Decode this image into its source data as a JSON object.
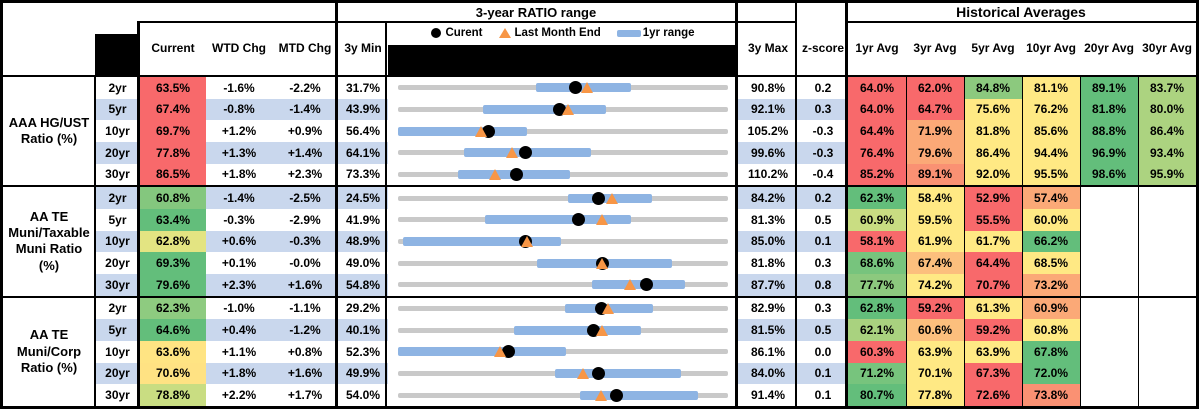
{
  "title_row": {
    "chart_title": "3-year RATIO range",
    "hist_title": "Historical Averages"
  },
  "columns": {
    "current": "Current",
    "wtd": "WTD Chg",
    "mtd": "MTD Chg",
    "min": "3y Min",
    "max": "3y Max",
    "z": "z-score",
    "avgs": [
      "1yr Avg",
      "3yr Avg",
      "5yr Avg",
      "10yr Avg",
      "20yr Avg",
      "30yr Avg"
    ]
  },
  "legend": {
    "current": "Curent",
    "last_month": "Last Month End",
    "range": "1yr range"
  },
  "colors": {
    "stripe": "#C9D7ED",
    "track_gray": "#C9C9C9",
    "range_bar_blue": "#8EB4E3",
    "triangle_orange": "#F79646",
    "dot_black": "#000000",
    "scale_red": "#F8696B",
    "scale_yellow": "#FFE984",
    "scale_green": "#63BE7B"
  },
  "chart_data": {
    "type": "table",
    "title": "3-year RATIO range",
    "groups": [
      {
        "label": "AAA HG/UST\nRatio (%)",
        "rows": [
          {
            "tenor": "2yr",
            "current": "63.5%",
            "current_bg": "#F8696B",
            "wtd": "-1.6%",
            "mtd": "-2.2%",
            "min": "31.7%",
            "max": "90.8%",
            "z": "0.2",
            "range": {
              "lo": 0.417,
              "hi": 0.707,
              "dot": 0.538,
              "tri": 0.575
            },
            "avgs": [
              {
                "v": "64.0%",
                "bg": "#F8696B"
              },
              {
                "v": "62.0%",
                "bg": "#F8696B"
              },
              {
                "v": "84.8%",
                "bg": "#8CC97E"
              },
              {
                "v": "81.1%",
                "bg": "#FFE984"
              },
              {
                "v": "89.1%",
                "bg": "#63BE7B"
              },
              {
                "v": "83.7%",
                "bg": "#ACD380"
              }
            ]
          },
          {
            "tenor": "5yr",
            "current": "67.4%",
            "current_bg": "#F8696B",
            "wtd": "-0.8%",
            "mtd": "-1.4%",
            "min": "43.9%",
            "max": "92.1%",
            "z": "0.3",
            "range": {
              "lo": 0.258,
              "hi": 0.631,
              "dot": 0.488,
              "tri": 0.517
            },
            "avgs": [
              {
                "v": "64.0%",
                "bg": "#F8696B"
              },
              {
                "v": "64.7%",
                "bg": "#F8696B"
              },
              {
                "v": "75.6%",
                "bg": "#FFE984"
              },
              {
                "v": "76.2%",
                "bg": "#FFE984"
              },
              {
                "v": "81.8%",
                "bg": "#63BE7B"
              },
              {
                "v": "80.0%",
                "bg": "#ACD380"
              }
            ]
          },
          {
            "tenor": "10yr",
            "current": "69.7%",
            "current_bg": "#F8696B",
            "wtd": "+1.2%",
            "mtd": "+0.9%",
            "min": "56.4%",
            "max": "105.2%",
            "z": "-0.3",
            "range": {
              "lo": 0.0,
              "hi": 0.392,
              "dot": 0.273,
              "tri": 0.254
            },
            "avgs": [
              {
                "v": "64.4%",
                "bg": "#F8696B"
              },
              {
                "v": "71.9%",
                "bg": "#FBA977"
              },
              {
                "v": "81.8%",
                "bg": "#FFE984"
              },
              {
                "v": "85.6%",
                "bg": "#FFE984"
              },
              {
                "v": "88.8%",
                "bg": "#63BE7B"
              },
              {
                "v": "86.4%",
                "bg": "#ACD380"
              }
            ]
          },
          {
            "tenor": "20yr",
            "current": "77.8%",
            "current_bg": "#F8696B",
            "wtd": "+1.3%",
            "mtd": "+1.4%",
            "min": "64.1%",
            "max": "99.6%",
            "z": "-0.3",
            "range": {
              "lo": 0.2,
              "hi": 0.584,
              "dot": 0.386,
              "tri": 0.346
            },
            "avgs": [
              {
                "v": "76.4%",
                "bg": "#F8696B"
              },
              {
                "v": "79.6%",
                "bg": "#FBA977"
              },
              {
                "v": "86.4%",
                "bg": "#FFE984"
              },
              {
                "v": "94.4%",
                "bg": "#FFE984"
              },
              {
                "v": "96.9%",
                "bg": "#63BE7B"
              },
              {
                "v": "93.4%",
                "bg": "#ACD380"
              }
            ]
          },
          {
            "tenor": "30yr",
            "current": "86.5%",
            "current_bg": "#F8696B",
            "wtd": "+1.8%",
            "mtd": "+2.3%",
            "min": "73.3%",
            "max": "110.2%",
            "z": "-0.4",
            "range": {
              "lo": 0.182,
              "hi": 0.52,
              "dot": 0.358,
              "tri": 0.295
            },
            "avgs": [
              {
                "v": "85.2%",
                "bg": "#F8696B"
              },
              {
                "v": "89.1%",
                "bg": "#FA9173"
              },
              {
                "v": "92.0%",
                "bg": "#FFE984"
              },
              {
                "v": "95.5%",
                "bg": "#FFE984"
              },
              {
                "v": "98.6%",
                "bg": "#63BE7B"
              },
              {
                "v": "95.9%",
                "bg": "#ACD380"
              }
            ]
          }
        ]
      },
      {
        "label": "AA TE\nMuni/Taxable\nMuni Ratio\n(%)",
        "rows": [
          {
            "tenor": "2yr",
            "current": "60.8%",
            "current_bg": "#84C77E",
            "wtd": "-1.4%",
            "mtd": "-2.5%",
            "min": "24.5%",
            "max": "84.2%",
            "z": "0.2",
            "range": {
              "lo": 0.515,
              "hi": 0.771,
              "dot": 0.608,
              "tri": 0.65
            },
            "avgs": [
              {
                "v": "62.3%",
                "bg": "#63BE7B"
              },
              {
                "v": "58.4%",
                "bg": "#FFE984"
              },
              {
                "v": "52.9%",
                "bg": "#F8696B"
              },
              {
                "v": "57.4%",
                "bg": "#FBA977"
              },
              {
                "v": "",
                "bg": ""
              },
              {
                "v": "",
                "bg": ""
              }
            ]
          },
          {
            "tenor": "5yr",
            "current": "63.4%",
            "current_bg": "#63BE7B",
            "wtd": "-0.3%",
            "mtd": "-2.9%",
            "min": "41.9%",
            "max": "81.3%",
            "z": "0.5",
            "range": {
              "lo": 0.263,
              "hi": 0.705,
              "dot": 0.546,
              "tri": 0.619
            },
            "avgs": [
              {
                "v": "60.9%",
                "bg": "#C9DD82"
              },
              {
                "v": "59.5%",
                "bg": "#FFE984"
              },
              {
                "v": "55.5%",
                "bg": "#F8696B"
              },
              {
                "v": "60.0%",
                "bg": "#FFE984"
              },
              {
                "v": "",
                "bg": ""
              },
              {
                "v": "",
                "bg": ""
              }
            ]
          },
          {
            "tenor": "10yr",
            "current": "62.8%",
            "current_bg": "#E3E482",
            "wtd": "+0.6%",
            "mtd": "-0.3%",
            "min": "48.9%",
            "max": "85.0%",
            "z": "0.1",
            "range": {
              "lo": 0.015,
              "hi": 0.495,
              "dot": 0.385,
              "tri": 0.393
            },
            "avgs": [
              {
                "v": "58.1%",
                "bg": "#F8696B"
              },
              {
                "v": "61.9%",
                "bg": "#FFE984"
              },
              {
                "v": "61.7%",
                "bg": "#FFE984"
              },
              {
                "v": "66.2%",
                "bg": "#63BE7B"
              },
              {
                "v": "",
                "bg": ""
              },
              {
                "v": "",
                "bg": ""
              }
            ]
          },
          {
            "tenor": "20yr",
            "current": "69.3%",
            "current_bg": "#63BE7B",
            "wtd": "+0.1%",
            "mtd": "-0.0%",
            "min": "49.0%",
            "max": "81.8%",
            "z": "0.3",
            "range": {
              "lo": 0.422,
              "hi": 0.83,
              "dot": 0.619,
              "tri": 0.621
            },
            "avgs": [
              {
                "v": "68.6%",
                "bg": "#77C47D"
              },
              {
                "v": "67.4%",
                "bg": "#FCBF7D"
              },
              {
                "v": "64.4%",
                "bg": "#F8696B"
              },
              {
                "v": "68.5%",
                "bg": "#FFE984"
              },
              {
                "v": "",
                "bg": ""
              },
              {
                "v": "",
                "bg": ""
              }
            ]
          },
          {
            "tenor": "30yr",
            "current": "79.6%",
            "current_bg": "#63BE7B",
            "wtd": "+2.3%",
            "mtd": "+1.6%",
            "min": "54.8%",
            "max": "87.7%",
            "z": "0.8",
            "range": {
              "lo": 0.588,
              "hi": 0.869,
              "dot": 0.754,
              "tri": 0.705
            },
            "avgs": [
              {
                "v": "77.7%",
                "bg": "#8CC97E"
              },
              {
                "v": "74.2%",
                "bg": "#FFE984"
              },
              {
                "v": "70.7%",
                "bg": "#F8696B"
              },
              {
                "v": "73.2%",
                "bg": "#FBA977"
              },
              {
                "v": "",
                "bg": ""
              },
              {
                "v": "",
                "bg": ""
              }
            ]
          }
        ]
      },
      {
        "label": "AA TE\nMuni/Corp\nRatio (%)",
        "rows": [
          {
            "tenor": "2yr",
            "current": "62.3%",
            "current_bg": "#8ECB80",
            "wtd": "-1.0%",
            "mtd": "-1.1%",
            "min": "29.2%",
            "max": "82.9%",
            "z": "0.3",
            "range": {
              "lo": 0.505,
              "hi": 0.773,
              "dot": 0.616,
              "tri": 0.637
            },
            "avgs": [
              {
                "v": "62.8%",
                "bg": "#63BE7B"
              },
              {
                "v": "59.2%",
                "bg": "#F8696B"
              },
              {
                "v": "61.3%",
                "bg": "#FFE984"
              },
              {
                "v": "60.9%",
                "bg": "#FBA977"
              },
              {
                "v": "",
                "bg": ""
              },
              {
                "v": "",
                "bg": ""
              }
            ]
          },
          {
            "tenor": "5yr",
            "current": "64.6%",
            "current_bg": "#63BE7B",
            "wtd": "+0.4%",
            "mtd": "-1.2%",
            "min": "40.1%",
            "max": "81.5%",
            "z": "0.5",
            "range": {
              "lo": 0.352,
              "hi": 0.735,
              "dot": 0.592,
              "tri": 0.621
            },
            "avgs": [
              {
                "v": "62.1%",
                "bg": "#A9D27F"
              },
              {
                "v": "60.6%",
                "bg": "#FCBF7D"
              },
              {
                "v": "59.2%",
                "bg": "#F8696B"
              },
              {
                "v": "60.8%",
                "bg": "#FFE984"
              },
              {
                "v": "",
                "bg": ""
              },
              {
                "v": "",
                "bg": ""
              }
            ]
          },
          {
            "tenor": "10yr",
            "current": "63.6%",
            "current_bg": "#FFE483",
            "wtd": "+1.1%",
            "mtd": "+0.8%",
            "min": "52.3%",
            "max": "86.1%",
            "z": "0.0",
            "range": {
              "lo": 0.0,
              "hi": 0.51,
              "dot": 0.334,
              "tri": 0.311
            },
            "avgs": [
              {
                "v": "60.3%",
                "bg": "#F8696B"
              },
              {
                "v": "63.9%",
                "bg": "#FFE984"
              },
              {
                "v": "63.9%",
                "bg": "#FFE984"
              },
              {
                "v": "67.8%",
                "bg": "#63BE7B"
              },
              {
                "v": "",
                "bg": ""
              },
              {
                "v": "",
                "bg": ""
              }
            ]
          },
          {
            "tenor": "20yr",
            "current": "70.6%",
            "current_bg": "#FFE283",
            "wtd": "+1.8%",
            "mtd": "+1.6%",
            "min": "49.9%",
            "max": "84.0%",
            "z": "0.1",
            "range": {
              "lo": 0.475,
              "hi": 0.859,
              "dot": 0.607,
              "tri": 0.561
            },
            "avgs": [
              {
                "v": "71.2%",
                "bg": "#77C47D"
              },
              {
                "v": "70.1%",
                "bg": "#FFE984"
              },
              {
                "v": "67.3%",
                "bg": "#F8696B"
              },
              {
                "v": "72.0%",
                "bg": "#63BE7B"
              },
              {
                "v": "",
                "bg": ""
              },
              {
                "v": "",
                "bg": ""
              }
            ]
          },
          {
            "tenor": "30yr",
            "current": "78.8%",
            "current_bg": "#C9DD82",
            "wtd": "+2.2%",
            "mtd": "+1.7%",
            "min": "54.0%",
            "max": "91.4%",
            "z": "0.1",
            "range": {
              "lo": 0.551,
              "hi": 0.909,
              "dot": 0.663,
              "tri": 0.616
            },
            "avgs": [
              {
                "v": "80.7%",
                "bg": "#63BE7B"
              },
              {
                "v": "77.8%",
                "bg": "#FFE984"
              },
              {
                "v": "72.6%",
                "bg": "#F8696B"
              },
              {
                "v": "73.8%",
                "bg": "#FA9173"
              },
              {
                "v": "",
                "bg": ""
              },
              {
                "v": "",
                "bg": ""
              }
            ]
          }
        ]
      }
    ]
  }
}
